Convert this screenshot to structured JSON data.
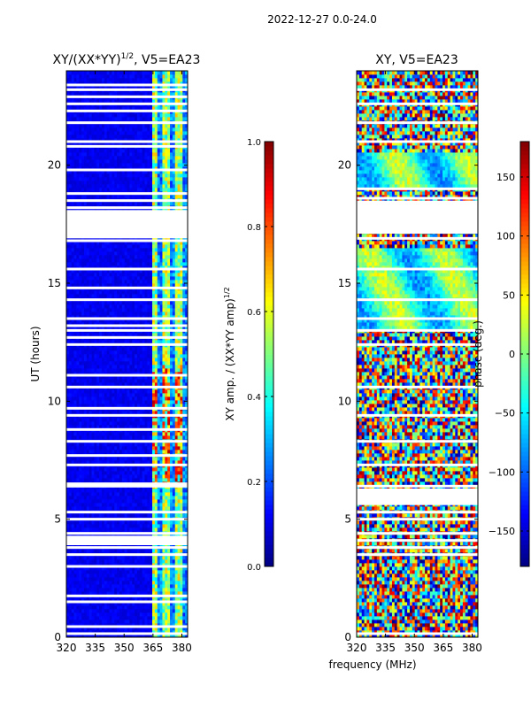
{
  "suptitle": "2022-12-27 0.0-24.0",
  "xlabel_shared": "frequency (MHz)",
  "chart_data": [
    {
      "type": "heatmap",
      "title_main": "XY/(XX*YY)",
      "title_sup": "1/2",
      "title_tail": ", V5=EA23",
      "xlabel": "",
      "ylabel": "UT (hours)",
      "xlim": [
        320,
        383
      ],
      "ylim": [
        0,
        24
      ],
      "xticks": [
        "320",
        "335",
        "350",
        "365",
        "380"
      ],
      "xtick_values": [
        320,
        335,
        350,
        365,
        380
      ],
      "yticks": [
        "0",
        "5",
        "10",
        "15",
        "20"
      ],
      "ytick_values": [
        0,
        5,
        10,
        15,
        20
      ],
      "colorbar": {
        "label_main": "XY amp. / (XX*YY amp)",
        "label_sup": "1/2",
        "range": [
          0.0,
          1.0
        ],
        "ticks": [
          "0.0",
          "0.2",
          "0.4",
          "0.6",
          "0.8",
          "1.0"
        ],
        "tick_values": [
          0.0,
          0.2,
          0.4,
          0.6,
          0.8,
          1.0
        ],
        "colormap": "jet"
      },
      "flagged_hours": [
        0.15,
        0.45,
        1.5,
        1.75,
        3.0,
        3.5,
        3.8,
        4.1,
        4.2,
        4.4,
        5.0,
        5.3,
        6.4,
        6.5,
        7.3,
        7.7,
        8.3,
        8.8,
        9.4,
        9.7,
        10.6,
        11.1,
        12.4,
        12.7,
        13.0,
        13.2,
        13.5,
        14.3,
        14.8,
        15.6,
        16.8,
        17.2,
        17.5,
        17.8,
        18.2,
        18.5,
        18.8,
        19.8,
        20.8,
        21.0,
        21.8,
        22.3,
        22.6,
        22.9,
        23.2,
        23.4
      ],
      "band_note": "low-amplitude (dark blue) below ~364 MHz, bright (0.3-0.8) patches 364-382 MHz"
    },
    {
      "type": "heatmap",
      "title_main": "XY, V5=EA23",
      "title_sup": "",
      "title_tail": "",
      "xlabel": "frequency (MHz)",
      "ylabel": "",
      "xlim": [
        320,
        383
      ],
      "ylim": [
        0,
        24
      ],
      "xticks": [
        "320",
        "335",
        "350",
        "365",
        "380"
      ],
      "xtick_values": [
        320,
        335,
        350,
        365,
        380
      ],
      "yticks": [
        "0",
        "5",
        "10",
        "15",
        "20"
      ],
      "ytick_values": [
        0,
        5,
        10,
        15,
        20
      ],
      "colorbar": {
        "label_main": "phase (deg.)",
        "label_sup": "",
        "range": [
          -180,
          180
        ],
        "ticks": [
          "−150",
          "−100",
          "−50",
          "0",
          "50",
          "100",
          "150"
        ],
        "tick_values": [
          -150,
          -100,
          -50,
          0,
          50,
          100,
          150
        ],
        "colormap": "jet"
      },
      "flagged_hours": [
        0.15,
        3.5,
        3.8,
        4.1,
        4.4,
        5.0,
        5.3,
        5.7,
        6.0,
        6.4,
        7.3,
        8.3,
        9.4,
        10.6,
        12.4,
        13.0,
        13.5,
        14.3,
        15.6,
        16.9,
        17.3,
        17.6,
        17.9,
        18.2,
        18.6,
        19.0,
        21.0,
        21.8,
        22.6,
        23.2
      ],
      "band_note": "noisy random phase across band, smooth structure 13-16.5 h and 19-20.5 h"
    }
  ]
}
